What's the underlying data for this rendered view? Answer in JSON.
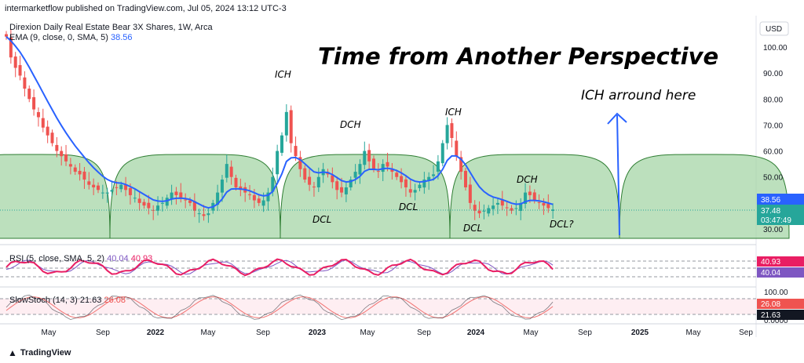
{
  "header": {
    "published": "intermarketflow published on TradingView.com, Jul 05, 2024 13:12 UTC-3"
  },
  "legend": {
    "symbol": "Direxion Daily Real Estate Bear 3X Shares, 1W, Arca",
    "ema_label": "EMA (9, close, 0, SMA, 5)",
    "ema_value": "38.56",
    "rsi_label": "RSI (5, close, SMA, 5, 2)",
    "rsi_value1": "40.04",
    "rsi_value2": "40.93",
    "stoch_label": "SlowStoch (14, 3)",
    "stoch_value1": "21.63",
    "stoch_value2": "26.08"
  },
  "currency": "USD",
  "title": "Time from Another Perspective",
  "annotations": {
    "ich1": "ICH",
    "ich2": "ICH",
    "dch1": "DCH",
    "dch2": "DCH",
    "dcl1": "DCL",
    "dcl2": "DCL",
    "dcl3": "DCL",
    "dcl4": "DCL?",
    "ich_around": "ICH arround here"
  },
  "price_tags": {
    "ema": "38.56",
    "last": "37.48",
    "countdown": "03:47:49"
  },
  "rsi_tags": {
    "a": "40.93",
    "b": "40.04"
  },
  "stoch_tags": {
    "a": "26.08",
    "b": "21.63"
  },
  "footer": {
    "brand": "TradingView"
  },
  "colors": {
    "up": "#26a69a",
    "down": "#ef5350",
    "ema": "#2962ff",
    "cycle_fill": "#a5d6a7",
    "cycle_stroke": "#2e7d32",
    "rsi": "#e91e63",
    "rsi_signal": "#7e57c2",
    "stoch": "#ef5350"
  },
  "chart_data": {
    "type": "candlestick",
    "ticker": "Direxion Daily Real Estate Bear 3X Shares",
    "timeframe": "1W",
    "price_axis": {
      "ticks": [
        100,
        90,
        80,
        70,
        60,
        50,
        30
      ]
    },
    "x_axis": {
      "ticks": [
        "May",
        "Sep",
        "2022",
        "May",
        "Sep",
        "2023",
        "May",
        "Sep",
        "2024",
        "May",
        "Sep",
        "2025",
        "May",
        "Sep"
      ]
    },
    "weekly_close": [
      104,
      96,
      92,
      89,
      84,
      80,
      76,
      73,
      69,
      66,
      63,
      60,
      58,
      56,
      54,
      52,
      51,
      49,
      47,
      46,
      45,
      44,
      44,
      45,
      46,
      47,
      45,
      43,
      42,
      40,
      39,
      38,
      37,
      39,
      40,
      42,
      44,
      43,
      42,
      41,
      40,
      37,
      36,
      35,
      36,
      40,
      44,
      49,
      55,
      50,
      46,
      45,
      44,
      43,
      41,
      40,
      41,
      44,
      50,
      60,
      66,
      75,
      63,
      58,
      53,
      49,
      47,
      46,
      50,
      53,
      51,
      48,
      45,
      44,
      46,
      49,
      52,
      55,
      60,
      56,
      53,
      52,
      55,
      54,
      52,
      50,
      48,
      46,
      44,
      45,
      47,
      49,
      50,
      51,
      56,
      63,
      70,
      65,
      58,
      52,
      46,
      40,
      37,
      36,
      37,
      38,
      39,
      40,
      39,
      38,
      37,
      38,
      40,
      44,
      43,
      41,
      40,
      39,
      38,
      37.48
    ],
    "ema_last": 38.56,
    "last_price": 37.48,
    "cycles": [
      {
        "label": "cycle-1",
        "trough": "DCL"
      },
      {
        "label": "cycle-2",
        "trough": "DCL",
        "peak": "ICH"
      },
      {
        "label": "cycle-3",
        "trough": "DCL",
        "peak": "ICH"
      },
      {
        "label": "cycle-4",
        "trough": "DCL?",
        "peak": "DCH"
      },
      {
        "label": "cycle-5 projected"
      }
    ],
    "rsi": {
      "value": 40.93,
      "signal": 40.04,
      "levels": [
        70,
        50,
        30
      ]
    },
    "stoch": {
      "k": 26.08,
      "d": 21.63,
      "ticks": [
        100.0,
        0.0
      ],
      "levels": [
        80,
        20
      ]
    }
  }
}
